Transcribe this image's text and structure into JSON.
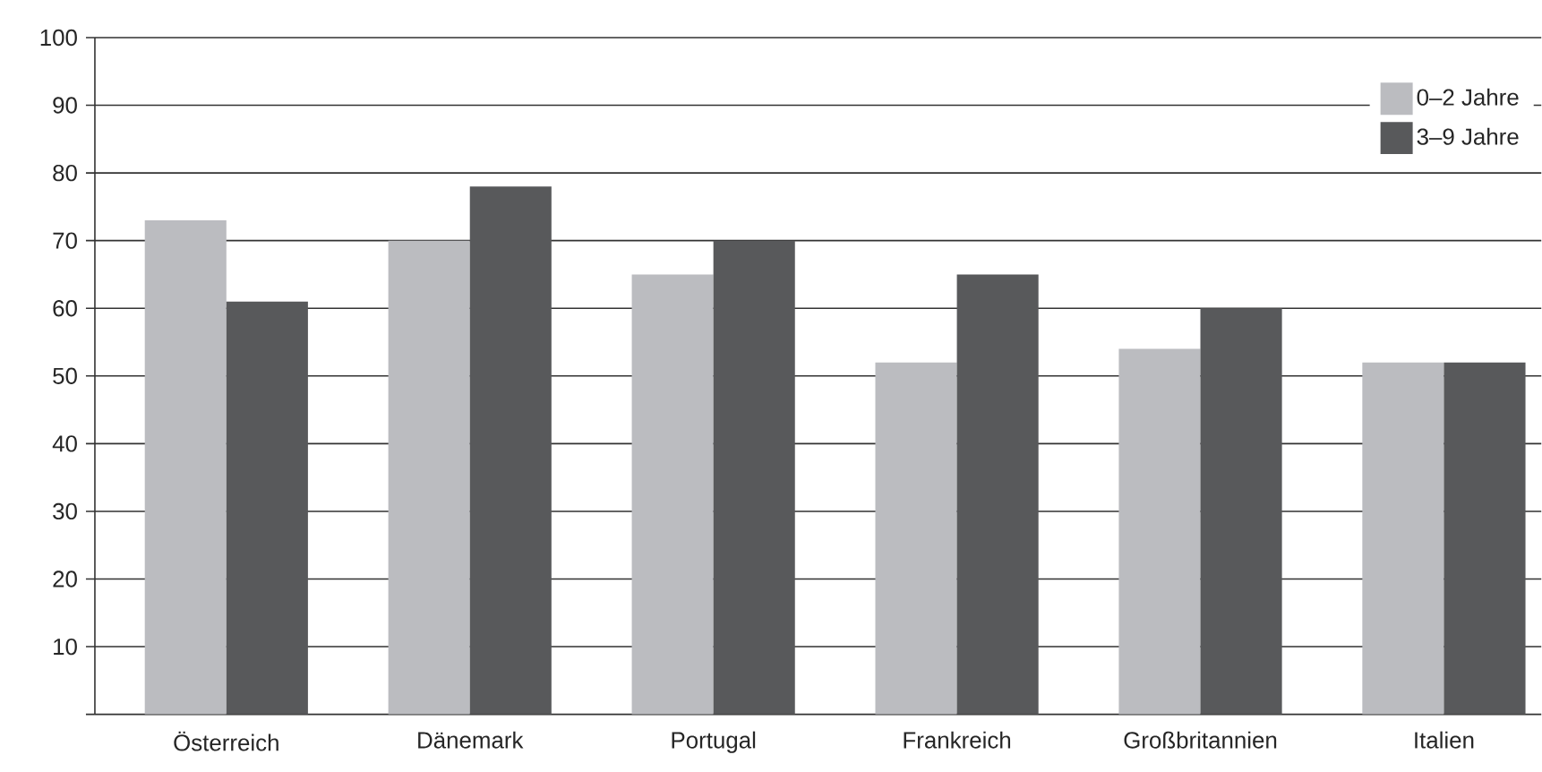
{
  "chart_data": {
    "type": "bar",
    "categories": [
      "Österreich",
      "Dänemark",
      "Portugal",
      "Frankreich",
      "Großbritannien",
      "Italien"
    ],
    "series": [
      {
        "name": "0–2 Jahre",
        "color": "#bbbcc0",
        "values": [
          73,
          70,
          65,
          52,
          54,
          52
        ]
      },
      {
        "name": "3–9 Jahre",
        "color": "#58595b",
        "values": [
          61,
          78,
          70,
          65,
          60,
          52
        ]
      }
    ],
    "ylim": [
      0,
      100
    ],
    "yticks": [
      {
        "value": 0,
        "label": null
      },
      10,
      20,
      30,
      40,
      50,
      60,
      70,
      80,
      90,
      100
    ],
    "grid": "y",
    "legend": "top right"
  }
}
